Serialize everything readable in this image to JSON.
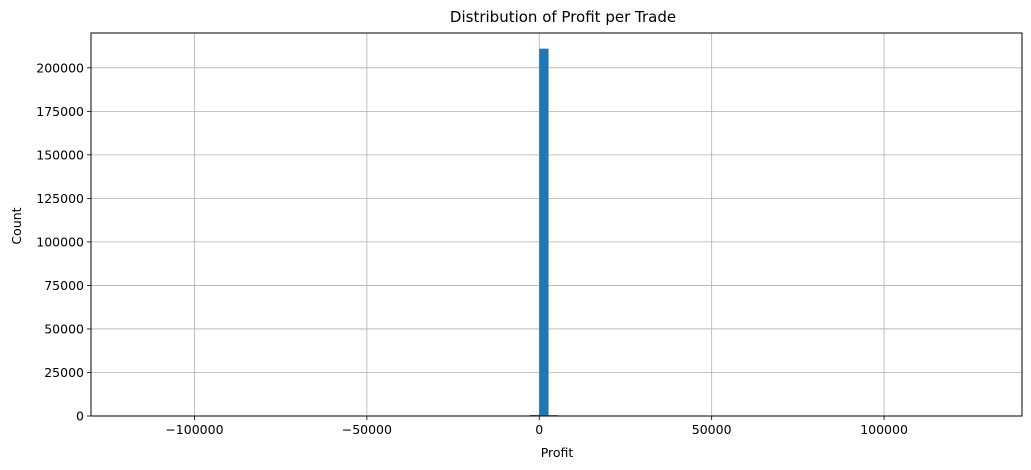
{
  "chart_data": {
    "type": "bar",
    "title": "Distribution of Profit per Trade",
    "xlabel": "Profit",
    "ylabel": "Count",
    "xlim": [
      -130000,
      140000
    ],
    "ylim": [
      0,
      220000
    ],
    "xticks": [
      -100000,
      -50000,
      0,
      50000,
      100000
    ],
    "xtick_labels": [
      "−100000",
      "−50000",
      "0",
      "50000",
      "100000"
    ],
    "yticks": [
      0,
      25000,
      50000,
      75000,
      100000,
      125000,
      150000,
      175000,
      200000
    ],
    "ytick_labels": [
      "0",
      "25000",
      "50000",
      "75000",
      "100000",
      "125000",
      "150000",
      "175000",
      "200000"
    ],
    "grid": true,
    "bar_color": "#1f77b4",
    "bins": [
      {
        "x0": -2700,
        "x1": 0,
        "count": 600
      },
      {
        "x0": 0,
        "x1": 2700,
        "count": 211000
      },
      {
        "x0": 2700,
        "x1": 5400,
        "count": 500
      }
    ]
  }
}
